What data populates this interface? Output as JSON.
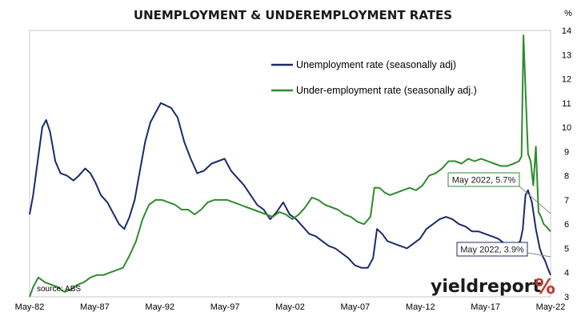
{
  "chart_data": {
    "type": "line",
    "title": "UNEMPLOYMENT & UNDEREMPLOYMENT RATES",
    "y_unit": "%",
    "source": "source: ABS",
    "brand": {
      "text": "yieldreport",
      "symbol": "%"
    },
    "ylim": [
      3,
      14
    ],
    "y_ticks": [
      "3",
      "4",
      "5",
      "6",
      "7",
      "8",
      "9",
      "10",
      "11",
      "12",
      "13",
      "14"
    ],
    "x_ticks": [
      "May-82",
      "May-87",
      "May-92",
      "May-97",
      "May-02",
      "May-07",
      "May-12",
      "May-17",
      "May-22"
    ],
    "xlim": [
      1982.33,
      2022.33
    ],
    "grid": false,
    "legend_position": "top-center",
    "series": [
      {
        "name": "Unemployment rate (seasonally adj)",
        "color": "#1b2a6b",
        "x": [
          1982.33,
          1982.6,
          1983.0,
          1983.3,
          1983.6,
          1983.9,
          1984.3,
          1984.7,
          1985.2,
          1985.7,
          1986.1,
          1986.6,
          1987.0,
          1987.4,
          1987.8,
          1988.3,
          1988.8,
          1989.2,
          1989.6,
          1990.0,
          1990.4,
          1990.8,
          1991.2,
          1991.6,
          1992.0,
          1992.4,
          1992.8,
          1993.2,
          1993.7,
          1994.2,
          1994.7,
          1995.2,
          1995.7,
          1996.3,
          1996.8,
          1997.3,
          1997.8,
          1998.3,
          1998.8,
          1999.3,
          1999.8,
          2000.3,
          2000.8,
          2001.3,
          2001.8,
          2002.3,
          2002.8,
          2003.3,
          2003.8,
          2004.3,
          2004.8,
          2005.3,
          2005.8,
          2006.3,
          2006.8,
          2007.3,
          2007.8,
          2008.3,
          2008.7,
          2009.0,
          2009.4,
          2009.8,
          2010.3,
          2010.8,
          2011.3,
          2011.8,
          2012.3,
          2012.8,
          2013.3,
          2013.8,
          2014.3,
          2014.8,
          2015.3,
          2015.8,
          2016.3,
          2016.8,
          2017.3,
          2017.8,
          2018.3,
          2018.8,
          2019.3,
          2019.8,
          2020.0,
          2020.2,
          2020.4,
          2020.6,
          2020.9,
          2021.2,
          2021.5,
          2021.7,
          2021.9,
          2022.1,
          2022.33
        ],
        "values": [
          6.4,
          7.2,
          8.8,
          10.0,
          10.3,
          9.8,
          8.6,
          8.1,
          8.0,
          7.8,
          8.0,
          8.3,
          8.1,
          7.7,
          7.2,
          6.9,
          6.4,
          6.0,
          5.8,
          6.3,
          7.0,
          8.2,
          9.4,
          10.2,
          10.6,
          11.0,
          10.9,
          10.8,
          10.4,
          9.4,
          8.7,
          8.1,
          8.2,
          8.5,
          8.6,
          8.7,
          8.2,
          7.9,
          7.6,
          7.2,
          6.8,
          6.6,
          6.2,
          6.5,
          6.9,
          6.4,
          6.2,
          5.9,
          5.6,
          5.5,
          5.3,
          5.1,
          5.0,
          4.8,
          4.6,
          4.3,
          4.2,
          4.2,
          4.6,
          5.8,
          5.6,
          5.3,
          5.2,
          5.1,
          5.0,
          5.2,
          5.4,
          5.8,
          6.0,
          6.2,
          6.3,
          6.2,
          6.0,
          5.9,
          5.7,
          5.7,
          5.6,
          5.5,
          5.4,
          5.2,
          5.2,
          5.2,
          5.3,
          5.8,
          7.2,
          7.4,
          6.9,
          5.8,
          5.0,
          4.7,
          4.5,
          4.2,
          3.9
        ]
      },
      {
        "name": "Under-employment rate (seasonally adj.)",
        "color": "#2e8b2e",
        "x": [
          1982.33,
          1982.6,
          1983.0,
          1983.5,
          1984.0,
          1984.5,
          1985.0,
          1985.5,
          1986.0,
          1986.5,
          1987.0,
          1987.5,
          1988.0,
          1988.5,
          1989.0,
          1989.5,
          1990.0,
          1990.5,
          1991.0,
          1991.5,
          1992.0,
          1992.5,
          1993.0,
          1993.5,
          1994.0,
          1994.5,
          1995.0,
          1995.5,
          1996.0,
          1996.5,
          1997.0,
          1997.5,
          1998.0,
          1998.5,
          1999.0,
          1999.5,
          2000.0,
          2000.5,
          2001.0,
          2001.5,
          2002.0,
          2002.5,
          2003.0,
          2003.5,
          2004.0,
          2004.5,
          2005.0,
          2005.5,
          2006.0,
          2006.5,
          2007.0,
          2007.5,
          2008.0,
          2008.5,
          2008.8,
          2009.2,
          2009.6,
          2010.0,
          2010.5,
          2011.0,
          2011.5,
          2012.0,
          2012.5,
          2013.0,
          2013.5,
          2014.0,
          2014.5,
          2015.0,
          2015.5,
          2016.0,
          2016.5,
          2017.0,
          2017.5,
          2018.0,
          2018.5,
          2019.0,
          2019.5,
          2019.9,
          2020.1,
          2020.25,
          2020.4,
          2020.6,
          2020.8,
          2021.0,
          2021.2,
          2021.4,
          2021.6,
          2021.8,
          2022.0,
          2022.33
        ],
        "values": [
          3.0,
          3.4,
          3.8,
          3.6,
          3.5,
          3.4,
          3.2,
          3.3,
          3.5,
          3.6,
          3.8,
          3.9,
          3.9,
          4.0,
          4.1,
          4.2,
          4.7,
          5.3,
          6.2,
          6.8,
          7.0,
          7.0,
          6.9,
          6.8,
          6.6,
          6.6,
          6.4,
          6.6,
          6.9,
          7.0,
          7.0,
          7.0,
          6.9,
          6.8,
          6.7,
          6.6,
          6.5,
          6.4,
          6.3,
          6.5,
          6.4,
          6.2,
          6.4,
          6.7,
          7.1,
          7.0,
          6.8,
          6.7,
          6.6,
          6.4,
          6.3,
          6.1,
          6.0,
          6.3,
          7.5,
          7.5,
          7.3,
          7.2,
          7.3,
          7.4,
          7.5,
          7.4,
          7.6,
          8.0,
          8.1,
          8.3,
          8.6,
          8.6,
          8.5,
          8.7,
          8.6,
          8.7,
          8.6,
          8.5,
          8.4,
          8.4,
          8.5,
          8.6,
          8.8,
          13.8,
          11.6,
          8.9,
          8.6,
          7.6,
          9.2,
          6.5,
          6.3,
          6.0,
          5.9,
          5.7
        ]
      }
    ],
    "annotations": [
      {
        "text": "May 2022, 5.7%",
        "series": 1,
        "x": 2022.33,
        "y": 5.7
      },
      {
        "text": "May 2022, 3.9%",
        "series": 0,
        "x": 2022.33,
        "y": 3.9
      }
    ]
  }
}
